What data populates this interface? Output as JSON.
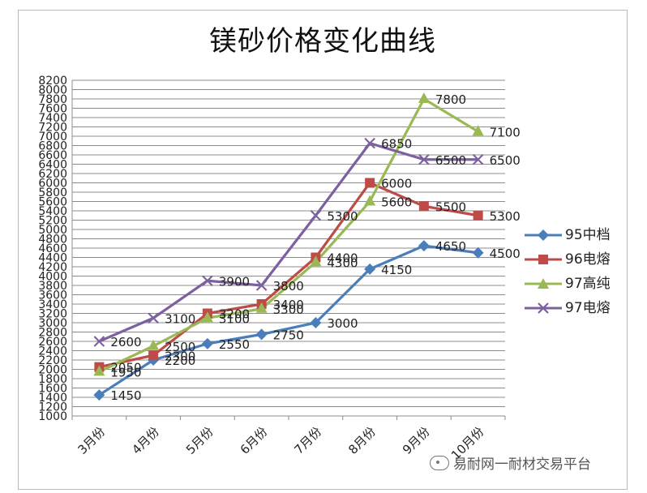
{
  "chart_data": {
    "type": "line",
    "title": "镁砂价格变化曲线",
    "categories": [
      "3月份",
      "4月份",
      "5月份",
      "6月份",
      "7月份",
      "8月份",
      "9月份",
      "10月份"
    ],
    "ylim": [
      1000,
      8200
    ],
    "ytick_step": 200,
    "grid": true,
    "legend_position": "right",
    "series": [
      {
        "name": "95中档",
        "marker": "diamond",
        "color": "#4a7ebb",
        "values": [
          1450,
          2200,
          2550,
          2750,
          3000,
          4150,
          4650,
          4500
        ],
        "labels": [
          "1450",
          "2200",
          "2550",
          "2750",
          "3000",
          "4150",
          "4650",
          "4500"
        ]
      },
      {
        "name": "96电熔",
        "marker": "square",
        "color": "#be4b48",
        "values": [
          2050,
          2300,
          3200,
          3400,
          4400,
          6000,
          5500,
          5300
        ],
        "labels": [
          "2050",
          "2300",
          "3200",
          "3400",
          "4400",
          "6000",
          "5500",
          "5300"
        ]
      },
      {
        "name": "97高纯",
        "marker": "triangle",
        "color": "#98b954",
        "values": [
          1950,
          2500,
          3100,
          3300,
          4300,
          5600,
          7800,
          7100
        ],
        "labels": [
          "1950",
          "2500",
          "3100",
          "3300",
          "4300",
          "5600",
          "7800",
          "7100"
        ]
      },
      {
        "name": "97电熔",
        "marker": "x",
        "color": "#7d60a0",
        "values": [
          2600,
          3100,
          3900,
          3800,
          5300,
          6850,
          6500,
          6500
        ],
        "labels": [
          "2600",
          "3100",
          "3900",
          "3800",
          "5300",
          "6850",
          "6500",
          "6500"
        ]
      }
    ]
  },
  "watermark": "易耐网一耐材交易平台"
}
